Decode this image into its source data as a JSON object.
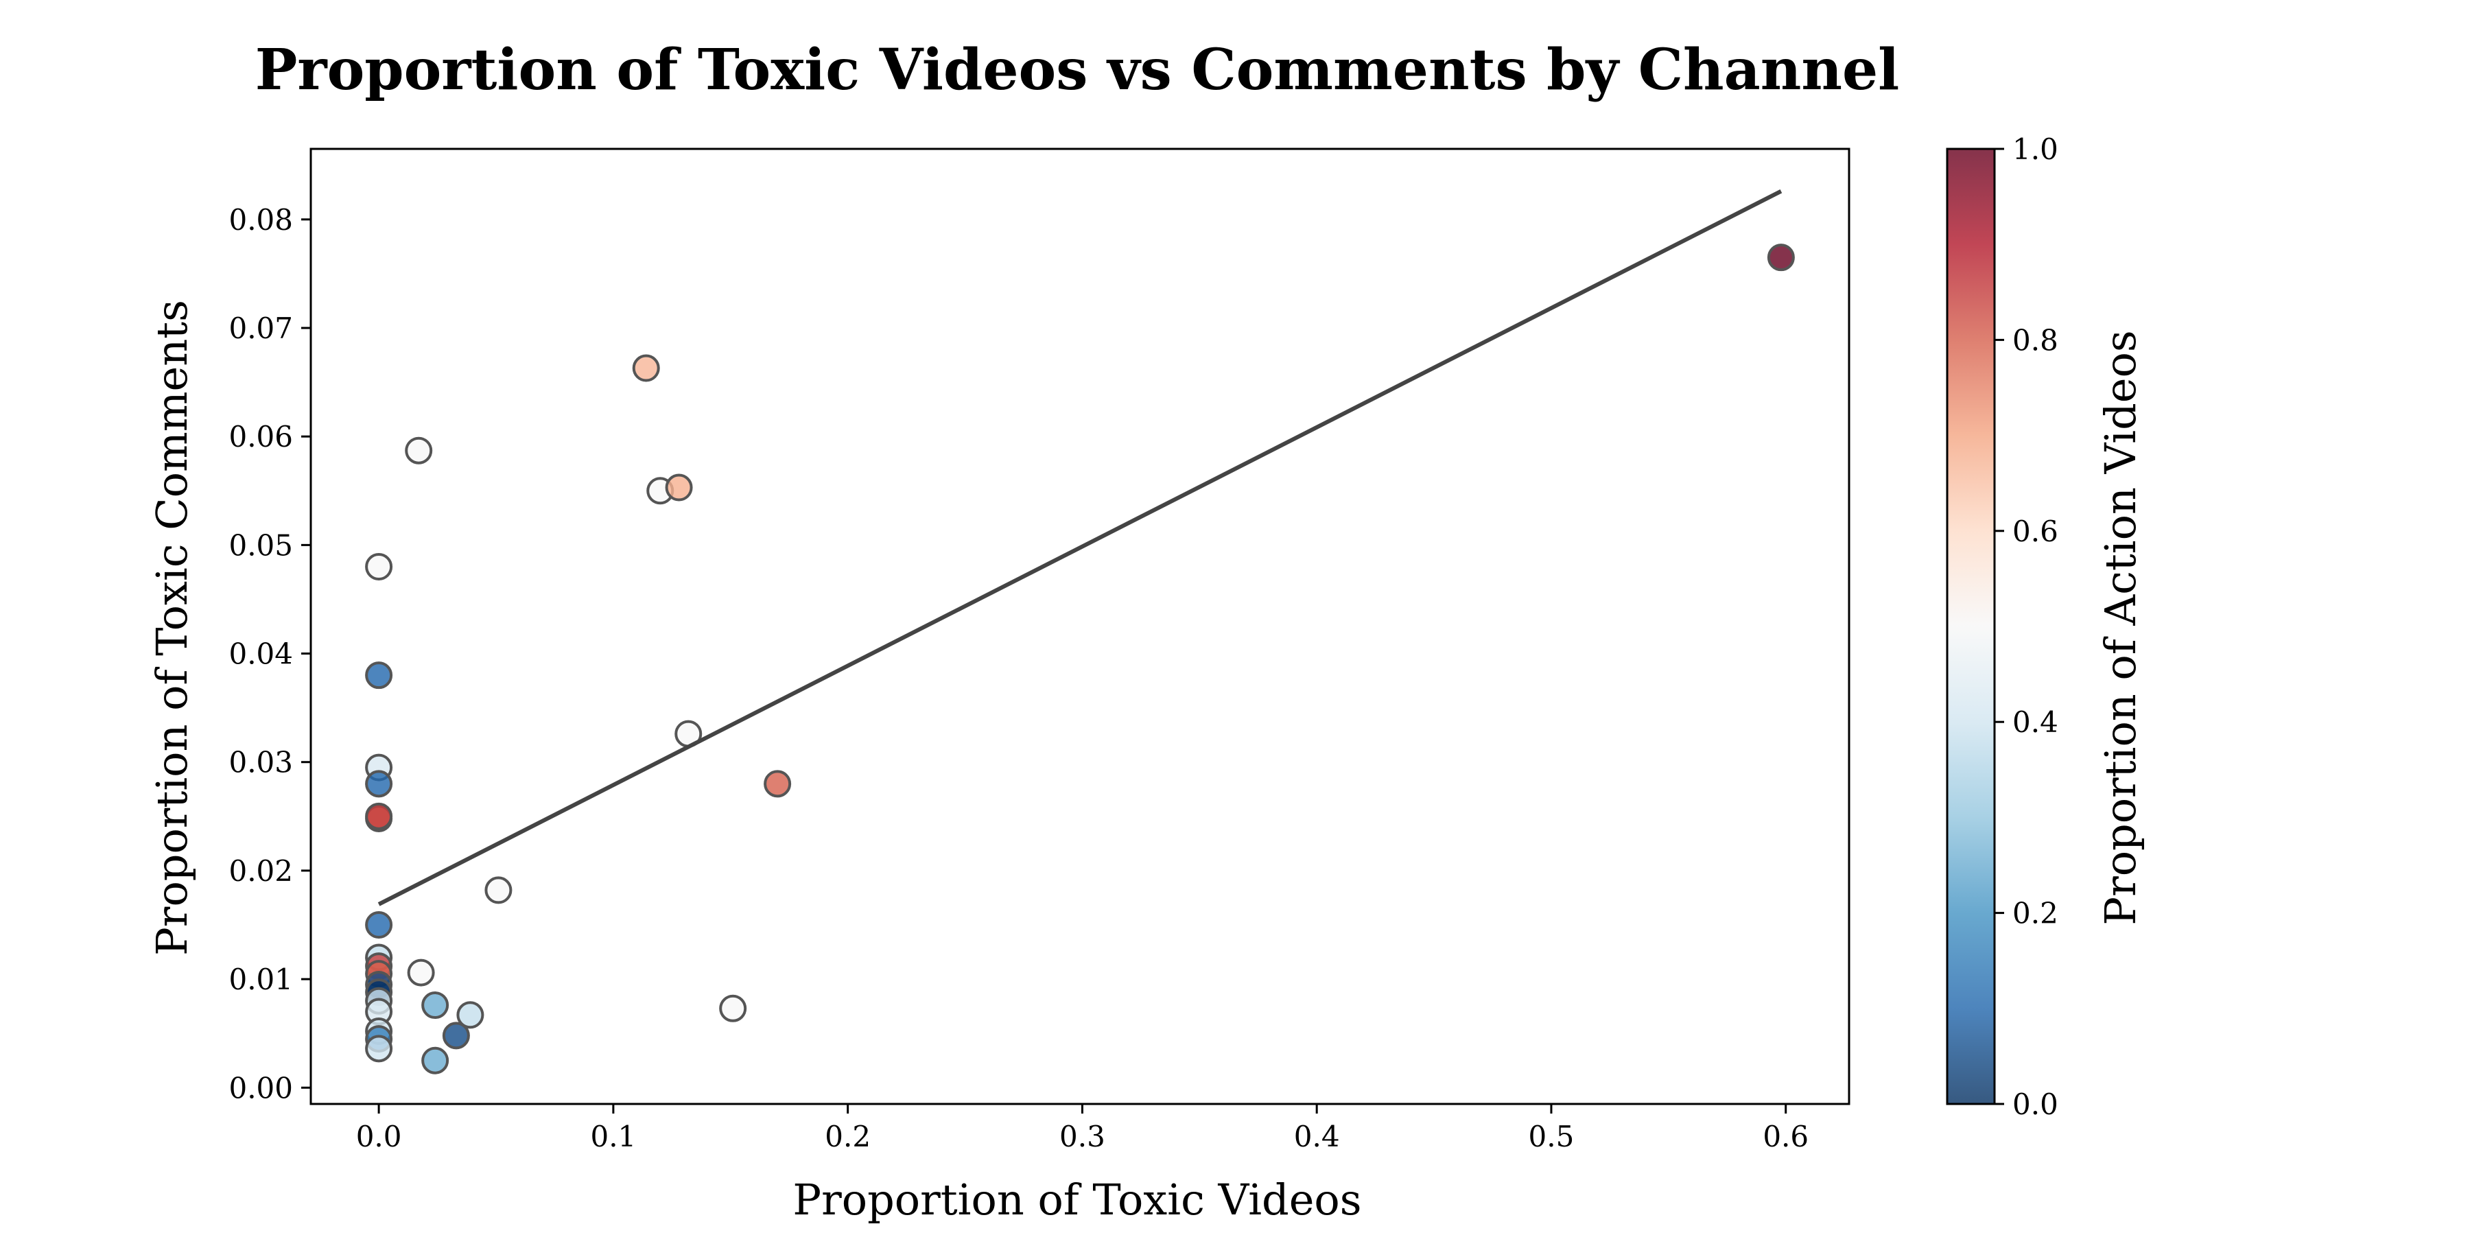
{
  "chart_data": {
    "type": "scatter",
    "title": "Proportion of Toxic Videos vs Comments by Channel",
    "xlabel": "Proportion of Toxic Videos",
    "ylabel": "Proportion of Toxic Comments",
    "xlim": [
      -0.029,
      0.627
    ],
    "ylim": [
      -0.0015,
      0.0865
    ],
    "xticks": [
      0.0,
      0.1,
      0.2,
      0.3,
      0.4,
      0.5,
      0.6
    ],
    "xtick_labels": [
      "0.0",
      "0.1",
      "0.2",
      "0.3",
      "0.4",
      "0.5",
      "0.6"
    ],
    "yticks": [
      0.0,
      0.01,
      0.02,
      0.03,
      0.04,
      0.05,
      0.06,
      0.07,
      0.08
    ],
    "ytick_labels": [
      "0.00",
      "0.01",
      "0.02",
      "0.03",
      "0.04",
      "0.05",
      "0.06",
      "0.07",
      "0.08"
    ],
    "grid": false,
    "colorbar": {
      "label": "Proportion of Action Videos",
      "min": 0.0,
      "max": 1.0,
      "ticks": [
        0.0,
        0.2,
        0.4,
        0.6,
        0.8,
        1.0
      ],
      "tick_labels": [
        "0.0",
        "0.2",
        "0.4",
        "0.6",
        "0.8",
        "1.0"
      ],
      "colormap": "RdBu_r",
      "stops": [
        "#053061",
        "#2166ac",
        "#4393c3",
        "#92c5de",
        "#d1e5f0",
        "#f7f7f7",
        "#fddbc7",
        "#f4a582",
        "#d6604d",
        "#b2182b",
        "#67001f"
      ]
    },
    "points": [
      {
        "x": 0.598,
        "y": 0.0765,
        "c": 1.0
      },
      {
        "x": 0.114,
        "y": 0.0663,
        "c": 0.67
      },
      {
        "x": 0.017,
        "y": 0.0587,
        "c": 0.5
      },
      {
        "x": 0.12,
        "y": 0.055,
        "c": 0.5
      },
      {
        "x": 0.128,
        "y": 0.0553,
        "c": 0.68
      },
      {
        "x": 0.0,
        "y": 0.048,
        "c": 0.5
      },
      {
        "x": 0.0,
        "y": 0.038,
        "c": 0.1
      },
      {
        "x": 0.132,
        "y": 0.0326,
        "c": 0.5
      },
      {
        "x": 0.0,
        "y": 0.0295,
        "c": 0.42
      },
      {
        "x": 0.0,
        "y": 0.028,
        "c": 0.1
      },
      {
        "x": 0.17,
        "y": 0.028,
        "c": 0.8
      },
      {
        "x": 0.0,
        "y": 0.0248,
        "c": 0.8
      },
      {
        "x": 0.0,
        "y": 0.025,
        "c": 0.85
      },
      {
        "x": 0.051,
        "y": 0.0182,
        "c": 0.5
      },
      {
        "x": 0.0,
        "y": 0.015,
        "c": 0.1
      },
      {
        "x": 0.0,
        "y": 0.012,
        "c": 0.38
      },
      {
        "x": 0.0,
        "y": 0.0112,
        "c": 0.85
      },
      {
        "x": 0.0,
        "y": 0.0105,
        "c": 0.8
      },
      {
        "x": 0.018,
        "y": 0.0106,
        "c": 0.5
      },
      {
        "x": 0.0,
        "y": 0.0095,
        "c": 0.05
      },
      {
        "x": 0.0,
        "y": 0.0088,
        "c": 0.0
      },
      {
        "x": 0.0,
        "y": 0.008,
        "c": 0.4
      },
      {
        "x": 0.0,
        "y": 0.007,
        "c": 0.42
      },
      {
        "x": 0.024,
        "y": 0.0076,
        "c": 0.25
      },
      {
        "x": 0.039,
        "y": 0.0067,
        "c": 0.38
      },
      {
        "x": 0.151,
        "y": 0.0073,
        "c": 0.5
      },
      {
        "x": 0.0,
        "y": 0.0052,
        "c": 0.4
      },
      {
        "x": 0.0,
        "y": 0.0045,
        "c": 0.15
      },
      {
        "x": 0.033,
        "y": 0.0048,
        "c": 0.05
      },
      {
        "x": 0.0,
        "y": 0.0036,
        "c": 0.4
      },
      {
        "x": 0.024,
        "y": 0.0025,
        "c": 0.25
      }
    ],
    "trendline": {
      "x": [
        0.0,
        0.598
      ],
      "y": [
        0.0169,
        0.0826
      ]
    }
  }
}
